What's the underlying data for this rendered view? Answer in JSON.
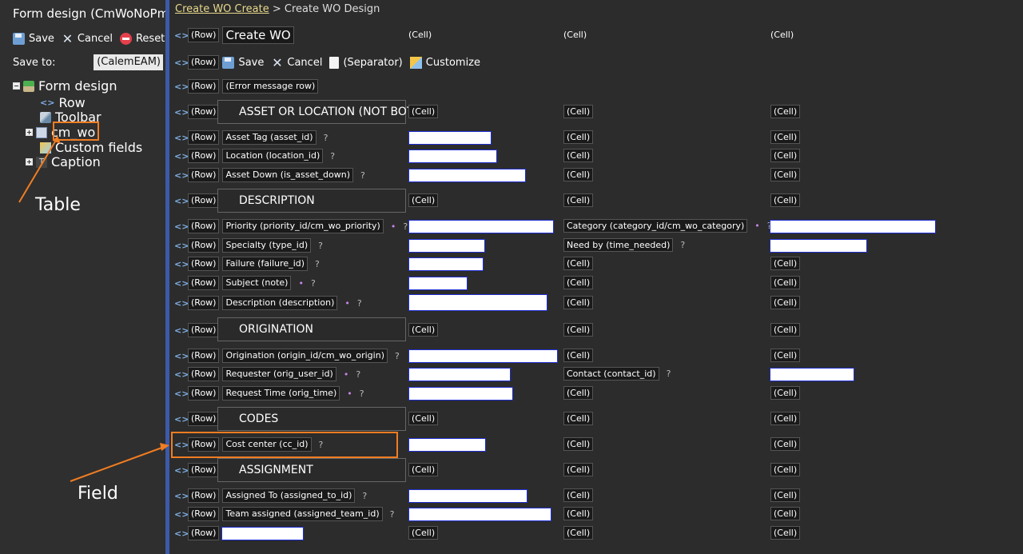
{
  "left": {
    "title": "Form design (CmWoNoPmVi",
    "toolbar": {
      "save": "Save",
      "cancel": "Cancel",
      "reset": "Reset"
    },
    "save_to_label": "Save to:",
    "save_to_value": "(CalemEAM)",
    "tree": [
      {
        "label": "Form design",
        "icon": "form-design-icon"
      },
      {
        "label": "Row",
        "icon": "row-icon"
      },
      {
        "label": "Toolbar",
        "icon": "toolbar-icon"
      },
      {
        "label": "cm_wo",
        "icon": "table-icon"
      },
      {
        "label": "Custom fields",
        "icon": "custom-fields-icon"
      },
      {
        "label": "Caption",
        "icon": "caption-icon"
      }
    ]
  },
  "annotations": {
    "table": "Table",
    "field": "Field"
  },
  "breadcrumb": {
    "link": "Create WO Create",
    "sep": " > ",
    "current": "Create WO Design"
  },
  "tags": {
    "row": "(Row)",
    "cell": "(Cell)",
    "arrow": "<>"
  },
  "rows": {
    "title": "Create WO",
    "toolbar": {
      "save": "Save",
      "cancel": "Cancel",
      "separator": "(Separator)",
      "customize": "Customize"
    },
    "error": "(Error message row)",
    "sections": [
      "ASSET OR LOCATION (NOT BOTH)",
      "DESCRIPTION",
      "ORIGINATION",
      "CODES",
      "ASSIGNMENT"
    ],
    "fields": {
      "asset_id": "Asset Tag (asset_id)",
      "location_id": "Location (location_id)",
      "is_asset_down": "Asset Down (is_asset_down)",
      "priority": "Priority (priority_id/cm_wo_priority)",
      "category": "Category (category_id/cm_wo_category)",
      "type": "Specialty (type_id)",
      "time_needed": "Need by (time_needed)",
      "failure": "Failure (failure_id)",
      "note": "Subject (note)",
      "description": "Description (description)",
      "origin": "Origination (origin_id/cm_wo_origin)",
      "orig_user": "Requester (orig_user_id)",
      "contact": "Contact (contact_id)",
      "orig_time": "Request Time (orig_time)",
      "cc": "Cost center (cc_id)",
      "assigned_to": "Assigned To (assigned_to_id)",
      "assigned_team": "Team assigned (assigned_team_id)"
    },
    "help": "?",
    "req": "•"
  }
}
